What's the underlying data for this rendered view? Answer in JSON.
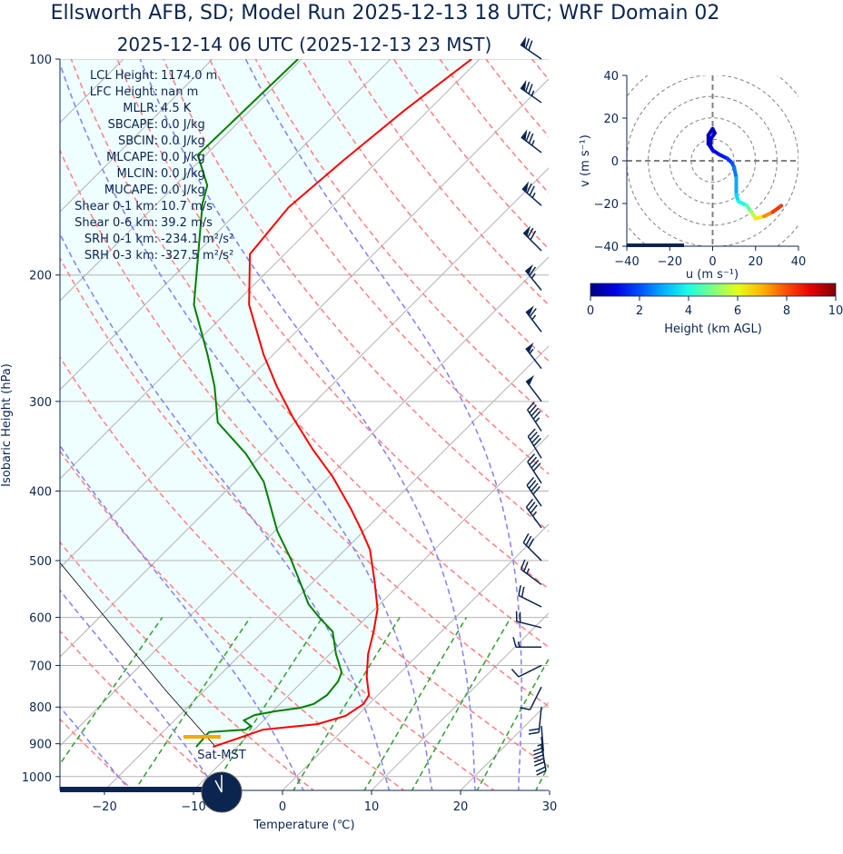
{
  "title": "Ellsworth AFB, SD; Model Run 2025-12-13 18 UTC; WRF Domain 02",
  "subtitle": "2025-12-14 06 UTC  (2025-12-13 23 MST)",
  "colors": {
    "text": "#0b2550",
    "temperature": "#ff0000",
    "dewpoint": "#008000",
    "cin_fill": "#effefe",
    "lcl_marker": "#ffa500",
    "isotherm": "#b4b4b4",
    "dry_adiabat": "#ff7f7f",
    "moist_adiabat": "#7f7fff",
    "mixing_ratio": "#2ca02c"
  },
  "stats": [
    {
      "label": "LCL Height:",
      "value": "1174.0 m"
    },
    {
      "label": "LFC Height:",
      "value": "nan m"
    },
    {
      "label": "MLLR:",
      "value": "4.5 K"
    },
    {
      "label": "SBCAPE:",
      "value": "0.0 J/kg"
    },
    {
      "label": "SBCIN:",
      "value": "0.0 J/kg"
    },
    {
      "label": "MLCAPE:",
      "value": "0.0 J/kg"
    },
    {
      "label": "MLCIN:",
      "value": "0.0 J/kg"
    },
    {
      "label": "MUCAPE:",
      "value": "0.0 J/kg"
    },
    {
      "label": "Shear 0-1 km:",
      "value": "10.7 m/s"
    },
    {
      "label": "Shear 0-6 km:",
      "value": "39.2 m/s"
    },
    {
      "label": "SRH 0-1 km:",
      "value": "-234.1 m²/s²"
    },
    {
      "label": "SRH 0-3 km:",
      "value": "-327.5 m²/s²"
    }
  ],
  "sat_label": "Sat-MST",
  "chart_data": [
    {
      "type": "line",
      "title": "Skew-T log-P",
      "xlabel": "Temperature (℃)",
      "ylabel": "Isobaric Height (hPa)",
      "xlim": [
        -25,
        30
      ],
      "ylim": [
        1050,
        100
      ],
      "xticks": [
        -20,
        -10,
        0,
        10,
        20,
        30
      ],
      "yticks": [
        100,
        200,
        300,
        400,
        500,
        600,
        700,
        800,
        900,
        1000
      ],
      "lcl_pressure": 880,
      "series": [
        {
          "name": "Temperature",
          "pressure": [
            909,
            860,
            845,
            823,
            792,
            770,
            726,
            675,
            628,
            584,
            535,
            483,
            455,
            423,
            382,
            350,
            316,
            286,
            258,
            220,
            187,
            161,
            138,
            118,
            100
          ],
          "values": [
            -12.7,
            -9.0,
            -3.5,
            -1.3,
            -0.6,
            -1.0,
            -3.3,
            -5.7,
            -7.6,
            -9.7,
            -13.1,
            -17.2,
            -20.2,
            -24.0,
            -29.6,
            -34.9,
            -40.7,
            -46.0,
            -51.1,
            -58.3,
            -63.9,
            -64.8,
            -63.9,
            -62.7,
            -60.9
          ]
        },
        {
          "name": "Dewpoint",
          "pressure": [
            909,
            867,
            860,
            850,
            835,
            821,
            811,
            802,
            792,
            770,
            737,
            716,
            675,
            628,
            601,
            575,
            535,
            497,
            455,
            388,
            355,
            321,
            286,
            258,
            220,
            187,
            159,
            150,
            136,
            100
          ],
          "values": [
            -14.6,
            -14.8,
            -11.0,
            -10.8,
            -12.2,
            -11.6,
            -9.7,
            -7.3,
            -6.2,
            -5.7,
            -6.0,
            -6.6,
            -9.3,
            -12.2,
            -15.2,
            -18.0,
            -21.5,
            -25.1,
            -29.7,
            -36.8,
            -41.9,
            -48.6,
            -53.0,
            -57.4,
            -64.5,
            -69.7,
            -74.9,
            -76.4,
            -80.9,
            -80.4
          ]
        },
        {
          "name": "Parcel",
          "pressure": [
            909,
            759,
            504,
            300,
            100
          ],
          "values": [
            -12.4,
            -24.3,
            -50.5,
            -80,
            -120
          ]
        }
      ],
      "wind_barbs_kt": {
        "pressure": [
          100,
          115,
          135,
          160,
          185,
          210,
          240,
          270,
          300,
          330,
          360,
          390,
          420,
          450,
          500,
          540,
          580,
          620,
          660,
          700,
          750,
          800,
          850,
          880,
          905
        ],
        "u": [
          58,
          60,
          58,
          55,
          50,
          42,
          38,
          35,
          30,
          25,
          22,
          22,
          22,
          22,
          20,
          20,
          20,
          20,
          15,
          10,
          5,
          2,
          -2,
          -3,
          -4
        ],
        "v": [
          -40,
          -42,
          -44,
          -48,
          -50,
          -52,
          -50,
          -45,
          -40,
          -38,
          -36,
          -34,
          -32,
          -30,
          -20,
          -15,
          -10,
          -5,
          0,
          5,
          10,
          20,
          25,
          28,
          22
        ]
      }
    },
    {
      "type": "line",
      "title": "Hodograph",
      "xlabel": "u (m s⁻¹)",
      "ylabel": "v (m s⁻¹)",
      "xlim": [
        -40,
        40
      ],
      "ylim": [
        -40,
        40
      ],
      "xticks": [
        -40,
        -20,
        0,
        20,
        40
      ],
      "yticks": [
        -40,
        -20,
        0,
        20,
        40
      ],
      "u": [
        0,
        -2,
        -2,
        0,
        1,
        -1,
        -1,
        0,
        3,
        7,
        9,
        10,
        11,
        11,
        12,
        16,
        18,
        20,
        24,
        28,
        32
      ],
      "v": [
        5,
        8,
        12,
        15,
        13,
        10,
        7,
        5,
        3,
        1,
        -1,
        -3,
        -8,
        -16,
        -19,
        -21,
        -24,
        -27,
        -26,
        -24,
        -21
      ],
      "height_km": [
        0,
        0.2,
        0.4,
        0.6,
        0.7,
        0.8,
        0.9,
        1.0,
        1.3,
        1.6,
        1.9,
        2.2,
        2.7,
        3.2,
        3.6,
        4.3,
        5.1,
        6.0,
        7.0,
        7.8,
        8.6
      ],
      "colorbar": {
        "label": "Height (km AGL)",
        "range": [
          0,
          10
        ],
        "ticks": [
          0,
          2,
          4,
          6,
          8,
          10
        ]
      }
    }
  ]
}
